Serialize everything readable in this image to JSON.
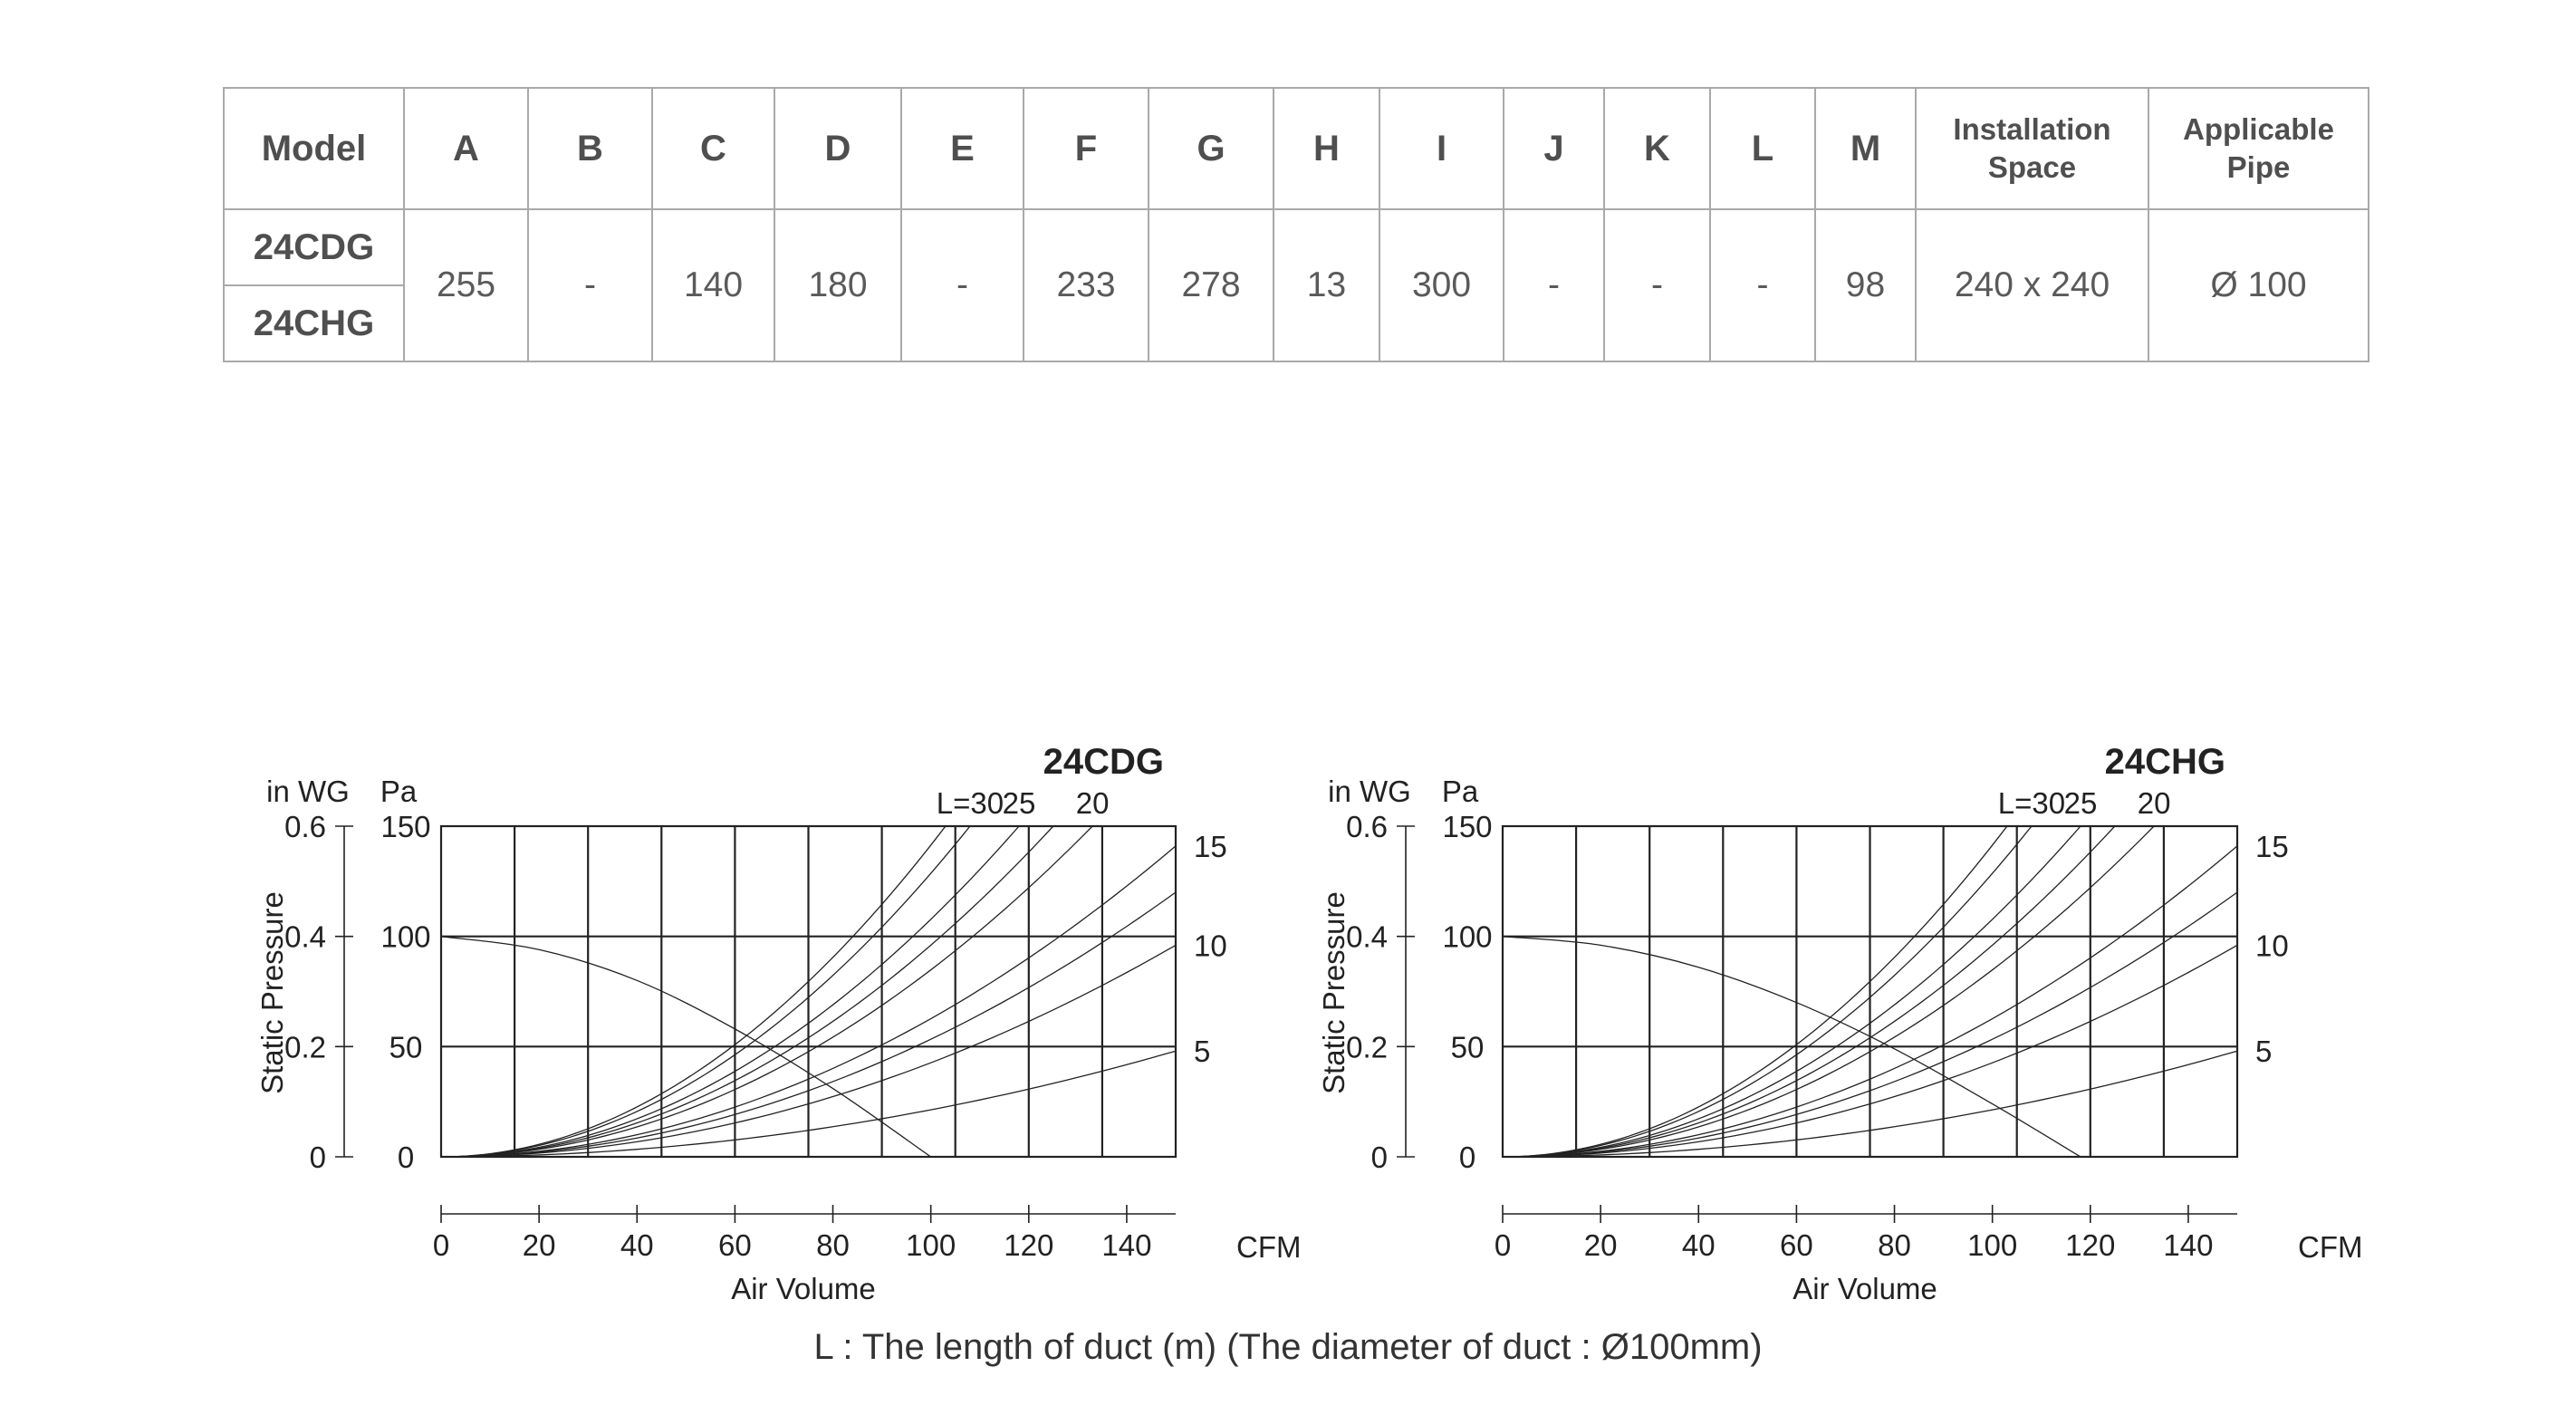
{
  "table": {
    "headers": [
      {
        "key": "model",
        "label": "Model"
      },
      {
        "key": "a",
        "label": "A"
      },
      {
        "key": "b",
        "label": "B"
      },
      {
        "key": "c",
        "label": "C"
      },
      {
        "key": "d",
        "label": "D"
      },
      {
        "key": "e",
        "label": "E"
      },
      {
        "key": "f",
        "label": "F"
      },
      {
        "key": "g",
        "label": "G"
      },
      {
        "key": "h",
        "label": "H"
      },
      {
        "key": "i",
        "label": "I"
      },
      {
        "key": "j",
        "label": "J"
      },
      {
        "key": "k",
        "label": "K"
      },
      {
        "key": "l",
        "label": "L"
      },
      {
        "key": "m",
        "label": "M"
      },
      {
        "key": "installation_space",
        "label_line1": "Installation",
        "label_line2": "Space"
      },
      {
        "key": "applicable_pipe",
        "label_line1": "Applicable",
        "label_line2": "Pipe"
      }
    ],
    "models": [
      "24CDG",
      "24CHG"
    ],
    "values": [
      "255",
      "-",
      "140",
      "180",
      "-",
      "233",
      "278",
      "13",
      "300",
      "-",
      "-",
      "-",
      "98",
      "240 x 240",
      "Ø 100"
    ]
  },
  "chart_data": [
    {
      "type": "line",
      "title": "24CDG",
      "xlabel": "Air Volume",
      "x_unit": "CFM",
      "ylabel": "Static Pressure",
      "y_unit_left": "in WG",
      "y_unit_right": "Pa",
      "y_ticks_inwg": [
        "0",
        "0.2",
        "0.4",
        "0.6"
      ],
      "y_ticks_pa": [
        "0",
        "50",
        "100",
        "150"
      ],
      "x_ticks": [
        "0",
        "20",
        "40",
        "60",
        "80",
        "100",
        "120",
        "140"
      ],
      "xlim": [
        0,
        150
      ],
      "ylim_pa": [
        0,
        150
      ],
      "grid": true,
      "series": [
        {
          "name": "fan",
          "kind": "fan",
          "x": [
            0,
            20,
            40,
            60,
            80,
            100
          ],
          "y": [
            100,
            94,
            80,
            58,
            31,
            0
          ]
        },
        {
          "name": "L=30",
          "kind": "duct",
          "x": [
            0,
            108
          ],
          "y": [
            0,
            150
          ]
        },
        {
          "name": "25",
          "kind": "duct",
          "x": [
            0,
            118
          ],
          "y": [
            0,
            150
          ]
        },
        {
          "name": "20",
          "kind": "duct",
          "x": [
            0,
            133
          ],
          "y": [
            0,
            150
          ]
        },
        {
          "name": "15",
          "kind": "duct",
          "x": [
            0,
            150
          ],
          "y": [
            0,
            141
          ]
        },
        {
          "name": "10",
          "kind": "duct",
          "x": [
            0,
            150
          ],
          "y": [
            0,
            96
          ]
        },
        {
          "name": "5",
          "kind": "duct",
          "x": [
            0,
            150
          ],
          "y": [
            0,
            48
          ]
        },
        {
          "name": "",
          "kind": "duct",
          "x": [
            0,
            103
          ],
          "y": [
            0,
            150
          ]
        },
        {
          "name": "",
          "kind": "duct",
          "x": [
            0,
            125
          ],
          "y": [
            0,
            150
          ]
        },
        {
          "name": "",
          "kind": "duct",
          "x": [
            0,
            150
          ],
          "y": [
            0,
            120
          ]
        }
      ],
      "right_labels": [
        "15",
        "10",
        "5"
      ],
      "top_labels": [
        "L=30",
        "25",
        "20"
      ]
    },
    {
      "type": "line",
      "title": "24CHG",
      "xlabel": "Air Volume",
      "x_unit": "CFM",
      "ylabel": "Static Pressure",
      "y_unit_left": "in WG",
      "y_unit_right": "Pa",
      "y_ticks_inwg": [
        "0",
        "0.2",
        "0.4",
        "0.6"
      ],
      "y_ticks_pa": [
        "0",
        "50",
        "100",
        "150"
      ],
      "x_ticks": [
        "0",
        "20",
        "40",
        "60",
        "80",
        "100",
        "120",
        "140"
      ],
      "xlim": [
        0,
        150
      ],
      "ylim_pa": [
        0,
        150
      ],
      "grid": true,
      "series": [
        {
          "name": "fan",
          "kind": "fan",
          "x": [
            0,
            20,
            40,
            60,
            80,
            100,
            118
          ],
          "y": [
            100,
            96,
            86,
            70,
            49,
            24,
            0
          ]
        },
        {
          "name": "L=30",
          "kind": "duct",
          "x": [
            0,
            108
          ],
          "y": [
            0,
            150
          ]
        },
        {
          "name": "25",
          "kind": "duct",
          "x": [
            0,
            118
          ],
          "y": [
            0,
            150
          ]
        },
        {
          "name": "20",
          "kind": "duct",
          "x": [
            0,
            133
          ],
          "y": [
            0,
            150
          ]
        },
        {
          "name": "15",
          "kind": "duct",
          "x": [
            0,
            150
          ],
          "y": [
            0,
            141
          ]
        },
        {
          "name": "10",
          "kind": "duct",
          "x": [
            0,
            150
          ],
          "y": [
            0,
            96
          ]
        },
        {
          "name": "5",
          "kind": "duct",
          "x": [
            0,
            150
          ],
          "y": [
            0,
            48
          ]
        },
        {
          "name": "",
          "kind": "duct",
          "x": [
            0,
            103
          ],
          "y": [
            0,
            150
          ]
        },
        {
          "name": "",
          "kind": "duct",
          "x": [
            0,
            125
          ],
          "y": [
            0,
            150
          ]
        },
        {
          "name": "",
          "kind": "duct",
          "x": [
            0,
            150
          ],
          "y": [
            0,
            120
          ]
        }
      ],
      "right_labels": [
        "15",
        "10",
        "5"
      ],
      "top_labels": [
        "L=30",
        "25",
        "20"
      ]
    }
  ],
  "footnote": "L : The length of duct (m) (The diameter of duct : Ø100mm)"
}
